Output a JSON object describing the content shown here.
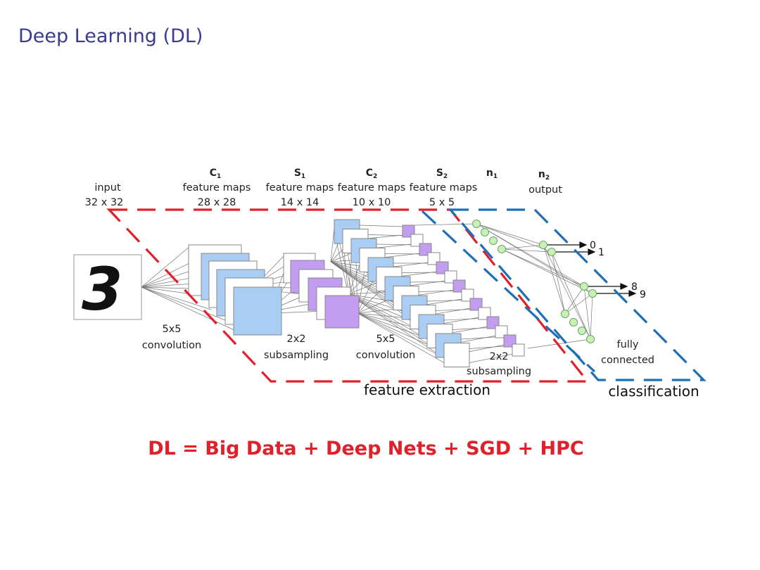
{
  "slide": {
    "title": "Deep Learning (DL)",
    "formula": "DL = Big Data + Deep Nets + SGD + HPC"
  },
  "diagram": {
    "input_digit": "3",
    "layers": [
      {
        "id": "input",
        "name": "input",
        "size": "32 x 32"
      },
      {
        "id": "c1",
        "symbol": "C",
        "sub": "1",
        "name": "feature maps",
        "size": "28 x 28"
      },
      {
        "id": "s1",
        "symbol": "S",
        "sub": "1",
        "name": "feature maps",
        "size": "14 x 14"
      },
      {
        "id": "c2",
        "symbol": "C",
        "sub": "2",
        "name": "feature maps",
        "size": "10 x 10"
      },
      {
        "id": "s2",
        "symbol": "S",
        "sub": "2",
        "name": "feature maps",
        "size": "5 x 5"
      },
      {
        "id": "n1",
        "symbol": "n",
        "sub": "1"
      },
      {
        "id": "n2",
        "symbol": "n",
        "sub": "2",
        "name": "output"
      }
    ],
    "operations": {
      "conv1": [
        "5x5",
        "convolution"
      ],
      "sub1": [
        "2x2",
        "subsampling"
      ],
      "conv2": [
        "5x5",
        "convolution"
      ],
      "sub2": [
        "2x2",
        "subsampling"
      ],
      "fc": [
        "fully",
        "connected"
      ]
    },
    "outputs": [
      "0",
      "1",
      "8",
      "9"
    ],
    "regions": {
      "feature_extraction": "feature extraction",
      "classification": "classification"
    },
    "colors": {
      "title": "#3b3b8f",
      "formula": "#e0202a",
      "feature_region": "#e0202a",
      "classification_region": "#1f6fb5",
      "conv_map": "#a9cdf3",
      "pool_map": "#c29df0",
      "neuron": "#c8f0b8"
    }
  }
}
